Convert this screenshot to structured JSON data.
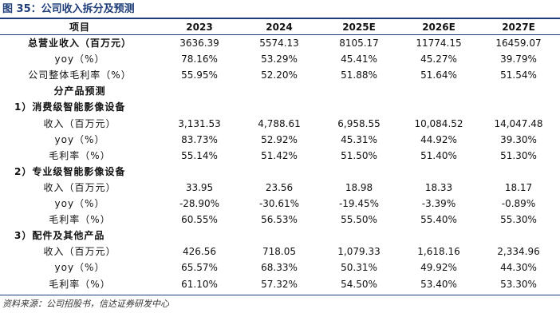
{
  "title": "图 35：公司收入拆分及预测",
  "header": [
    "项目",
    "2023",
    "2024",
    "2025E",
    "2026E",
    "2027E"
  ],
  "rows": [
    {
      "kind": "data",
      "label": "总营业收入（百万元）",
      "bold": true,
      "values": [
        "3636.39",
        "5574.13",
        "8105.17",
        "11774.15",
        "16459.07"
      ]
    },
    {
      "kind": "data",
      "label": "yoy（%）",
      "values": [
        "78.16%",
        "53.29%",
        "45.41%",
        "45.27%",
        "39.79%"
      ]
    },
    {
      "kind": "data",
      "label": "公司整体毛利率（%）",
      "values": [
        "55.95%",
        "52.20%",
        "51.88%",
        "51.64%",
        "51.54%"
      ]
    },
    {
      "kind": "center",
      "label": "分产品预测"
    },
    {
      "kind": "section",
      "label": "1）消费级智能影像设备"
    },
    {
      "kind": "data",
      "label": "收入（百万元）",
      "values": [
        "3,131.53",
        "4,788.61",
        "6,958.55",
        "10,084.52",
        "14,047.48"
      ]
    },
    {
      "kind": "data",
      "label": "yoy（%）",
      "values": [
        "83.73%",
        "52.92%",
        "45.31%",
        "44.92%",
        "39.30%"
      ]
    },
    {
      "kind": "data",
      "label": "毛利率（%）",
      "values": [
        "55.14%",
        "51.42%",
        "51.50%",
        "51.40%",
        "51.30%"
      ]
    },
    {
      "kind": "section",
      "label": "2）专业级智能影像设备"
    },
    {
      "kind": "data",
      "label": "收入（百万元）",
      "values": [
        "33.95",
        "23.56",
        "18.98",
        "18.33",
        "18.17"
      ]
    },
    {
      "kind": "data",
      "label": "yoy（%）",
      "values": [
        "-28.90%",
        "-30.61%",
        "-19.45%",
        "-3.39%",
        "-0.89%"
      ]
    },
    {
      "kind": "data",
      "label": "毛利率（%）",
      "values": [
        "60.55%",
        "56.53%",
        "55.50%",
        "55.40%",
        "55.30%"
      ]
    },
    {
      "kind": "section",
      "label": "3）配件及其他产品"
    },
    {
      "kind": "data",
      "label": "收入（百万元）",
      "values": [
        "426.56",
        "718.05",
        "1,079.33",
        "1,618.16",
        "2,334.96"
      ]
    },
    {
      "kind": "data",
      "label": "yoy（%）",
      "values": [
        "65.57%",
        "68.33%",
        "50.31%",
        "49.92%",
        "44.30%"
      ]
    },
    {
      "kind": "data",
      "label": "毛利率（%）",
      "values": [
        "61.10%",
        "57.32%",
        "54.50%",
        "53.40%",
        "53.30%"
      ]
    }
  ],
  "source": "资料来源：公司招股书，信达证券研发中心",
  "colors": {
    "accent": "#1f3e79"
  }
}
